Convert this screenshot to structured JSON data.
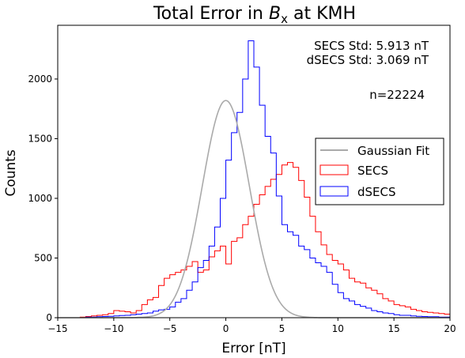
{
  "chart_data": {
    "type": "histogram",
    "title_prefix": "Total Error in ",
    "title_var": "B",
    "title_sub": "x",
    "title_suffix": " at KMH",
    "xlabel": "Error [nT]",
    "ylabel": "Counts",
    "xlim": [
      -15,
      20
    ],
    "ylim": [
      0,
      2450
    ],
    "xticks": [
      -15,
      -10,
      -5,
      0,
      5,
      10,
      15,
      20
    ],
    "yticks": [
      0,
      500,
      1000,
      1500,
      2000
    ],
    "bin_width": 0.5,
    "bin_start": -15,
    "annotations": {
      "secs_std": "SECS Std: 5.913 nT",
      "dsecs_std": "dSECS Std: 3.069 nT",
      "n": "n=22224"
    },
    "legend": {
      "position": "center-right",
      "entries": [
        "Gaussian Fit",
        "SECS",
        "dSECS"
      ]
    },
    "gaussian": {
      "name": "Gaussian Fit",
      "color": "#aaaaaa",
      "mean": 0,
      "std": 2.1,
      "peak": 1820
    },
    "series": [
      {
        "name": "SECS",
        "color": "#ff0000",
        "values": [
          0,
          0,
          0,
          0,
          5,
          10,
          15,
          20,
          25,
          35,
          60,
          55,
          50,
          40,
          60,
          110,
          150,
          170,
          270,
          330,
          360,
          380,
          400,
          430,
          470,
          380,
          400,
          510,
          560,
          600,
          450,
          640,
          670,
          780,
          850,
          950,
          1030,
          1100,
          1160,
          1200,
          1280,
          1300,
          1260,
          1150,
          1010,
          850,
          720,
          610,
          530,
          480,
          450,
          400,
          330,
          300,
          290,
          250,
          230,
          200,
          160,
          140,
          110,
          100,
          90,
          70,
          60,
          50,
          45,
          40,
          35,
          30,
          25,
          20,
          30,
          40,
          25,
          20,
          25,
          30,
          25,
          20,
          15,
          30,
          45,
          40,
          30,
          25,
          20,
          15,
          25,
          35,
          30,
          20,
          15,
          10,
          10,
          10,
          8,
          5,
          5,
          5,
          5,
          3,
          3,
          3,
          2,
          2,
          2,
          1,
          1,
          0,
          0,
          0,
          0,
          0,
          0,
          0,
          0,
          0,
          0,
          0,
          0,
          0,
          0,
          0,
          0,
          0,
          0,
          0,
          0,
          0,
          0,
          0,
          0,
          0,
          0,
          0
        ],
        "tail": "long"
      },
      {
        "name": "dSECS",
        "color": "#0000ff",
        "values": [
          0,
          0,
          0,
          0,
          0,
          5,
          5,
          8,
          10,
          12,
          15,
          18,
          20,
          25,
          30,
          35,
          40,
          55,
          65,
          70,
          90,
          130,
          160,
          230,
          300,
          420,
          480,
          600,
          760,
          1000,
          1320,
          1550,
          1720,
          2000,
          2320,
          2100,
          1780,
          1520,
          1380,
          1020,
          780,
          720,
          690,
          600,
          570,
          500,
          460,
          430,
          380,
          280,
          210,
          160,
          140,
          110,
          95,
          80,
          60,
          50,
          40,
          35,
          25,
          20,
          20,
          15,
          12,
          10,
          8,
          8,
          5,
          5,
          5,
          3,
          3,
          2,
          2,
          0,
          0,
          0,
          0,
          0,
          0,
          0,
          0,
          0,
          0,
          0,
          0,
          0,
          0,
          0,
          0,
          0,
          0,
          0,
          0,
          0,
          0,
          0,
          0,
          0,
          0,
          0,
          0,
          0,
          0,
          0,
          0,
          0,
          0,
          0,
          0,
          0,
          0,
          0,
          0,
          0,
          0,
          0,
          0,
          0,
          0,
          0,
          0,
          0,
          0,
          0,
          0,
          0,
          0,
          0,
          0,
          0,
          0,
          0,
          0,
          0
        ]
      }
    ]
  }
}
